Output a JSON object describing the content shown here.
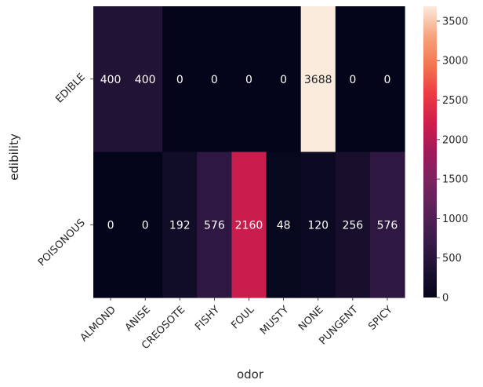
{
  "chart_data": {
    "type": "heatmap",
    "xlabel": "odor",
    "ylabel": "edibility",
    "x_categories": [
      "ALMOND",
      "ANISE",
      "CREOSOTE",
      "FISHY",
      "FOUL",
      "MUSTY",
      "NONE",
      "PUNGENT",
      "SPICY"
    ],
    "y_categories": [
      "EDIBLE",
      "POISONOUS"
    ],
    "values": [
      [
        400,
        400,
        0,
        0,
        0,
        0,
        3688,
        0,
        0
      ],
      [
        0,
        0,
        192,
        576,
        2160,
        48,
        120,
        256,
        576
      ]
    ],
    "annotations": true,
    "colorscale": "rocket",
    "colorbar": {
      "range": [
        0,
        3688
      ],
      "ticks": [
        0,
        500,
        1000,
        1500,
        2000,
        2500,
        3000,
        3500
      ]
    },
    "grid": false
  }
}
